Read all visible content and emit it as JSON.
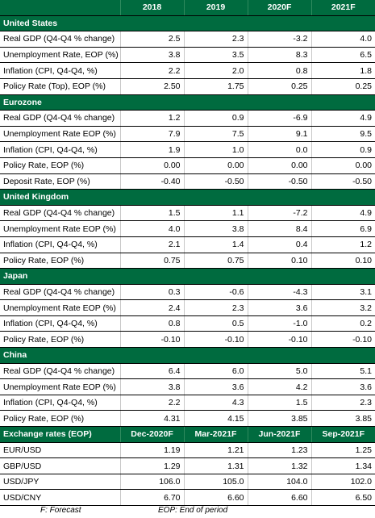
{
  "header": {
    "columns": [
      "2018",
      "2019",
      "2020F",
      "2021F"
    ]
  },
  "sections": [
    {
      "name": "United States",
      "rows": [
        {
          "label": "Real GDP (Q4-Q4 % change)",
          "values": [
            "2.5",
            "2.3",
            "-3.2",
            "4.0"
          ]
        },
        {
          "label": "Unemployment Rate, EOP (%)",
          "values": [
            "3.8",
            "3.5",
            "8.3",
            "6.5"
          ]
        },
        {
          "label": "Inflation (CPI, Q4-Q4, %)",
          "values": [
            "2.2",
            "2.0",
            "0.8",
            "1.8"
          ]
        },
        {
          "label": "Policy Rate (Top), EOP (%)",
          "values": [
            "2.50",
            "1.75",
            "0.25",
            "0.25"
          ]
        }
      ]
    },
    {
      "name": "Eurozone",
      "rows": [
        {
          "label": "Real GDP (Q4-Q4 % change)",
          "values": [
            "1.2",
            "0.9",
            "-6.9",
            "4.9"
          ]
        },
        {
          "label": "Unemployment Rate EOP (%)",
          "values": [
            "7.9",
            "7.5",
            "9.1",
            "9.5"
          ]
        },
        {
          "label": "Inflation (CPI, Q4-Q4, %)",
          "values": [
            "1.9",
            "1.0",
            "0.0",
            "0.9"
          ]
        },
        {
          "label": "Policy Rate, EOP (%)",
          "values": [
            "0.00",
            "0.00",
            "0.00",
            "0.00"
          ]
        },
        {
          "label": "Deposit Rate, EOP (%)",
          "values": [
            "-0.40",
            "-0.50",
            "-0.50",
            "-0.50"
          ]
        }
      ]
    },
    {
      "name": "United Kingdom",
      "rows": [
        {
          "label": "Real GDP (Q4-Q4 % change)",
          "values": [
            "1.5",
            "1.1",
            "-7.2",
            "4.9"
          ]
        },
        {
          "label": "Unemployment Rate EOP (%)",
          "values": [
            "4.0",
            "3.8",
            "8.4",
            "6.9"
          ]
        },
        {
          "label": "Inflation (CPI, Q4-Q4, %)",
          "values": [
            "2.1",
            "1.4",
            "0.4",
            "1.2"
          ]
        },
        {
          "label": "Policy Rate, EOP (%)",
          "values": [
            "0.75",
            "0.75",
            "0.10",
            "0.10"
          ]
        }
      ]
    },
    {
      "name": "Japan",
      "rows": [
        {
          "label": "Real GDP (Q4-Q4 % change)",
          "values": [
            "0.3",
            "-0.6",
            "-4.3",
            "3.1"
          ]
        },
        {
          "label": "Unemployment Rate EOP (%)",
          "values": [
            "2.4",
            "2.3",
            "3.6",
            "3.2"
          ]
        },
        {
          "label": "Inflation (CPI, Q4-Q4, %)",
          "values": [
            "0.8",
            "0.5",
            "-1.0",
            "0.2"
          ]
        },
        {
          "label": "Policy Rate, EOP (%)",
          "values": [
            "-0.10",
            "-0.10",
            "-0.10",
            "-0.10"
          ]
        }
      ]
    },
    {
      "name": "China",
      "rows": [
        {
          "label": "Real GDP (Q4-Q4 % change)",
          "values": [
            "6.4",
            "6.0",
            "5.0",
            "5.1"
          ]
        },
        {
          "label": "Unemployment Rate EOP (%)",
          "values": [
            "3.8",
            "3.6",
            "4.2",
            "3.6"
          ]
        },
        {
          "label": "Inflation (CPI, Q4-Q4, %)",
          "values": [
            "2.2",
            "4.3",
            "1.5",
            "2.3"
          ]
        },
        {
          "label": "Policy Rate, EOP (%)",
          "values": [
            "4.31",
            "4.15",
            "3.85",
            "3.85"
          ]
        }
      ]
    }
  ],
  "fx": {
    "title": "Exchange rates (EOP)",
    "columns": [
      "Dec-2020F",
      "Mar-2021F",
      "Jun-2021F",
      "Sep-2021F"
    ],
    "rows": [
      {
        "label": "EUR/USD",
        "values": [
          "1.19",
          "1.21",
          "1.23",
          "1.25"
        ]
      },
      {
        "label": "GBP/USD",
        "values": [
          "1.29",
          "1.31",
          "1.32",
          "1.34"
        ]
      },
      {
        "label": "USD/JPY",
        "values": [
          "106.0",
          "105.0",
          "104.0",
          "102.0"
        ]
      },
      {
        "label": "USD/CNY",
        "values": [
          "6.70",
          "6.60",
          "6.60",
          "6.50"
        ]
      }
    ]
  },
  "footer": {
    "forecast_note": "F: Forecast",
    "eop_note": "EOP: End of period"
  },
  "colors": {
    "header_green": "#006b3f",
    "header_text": "#ffffff"
  }
}
